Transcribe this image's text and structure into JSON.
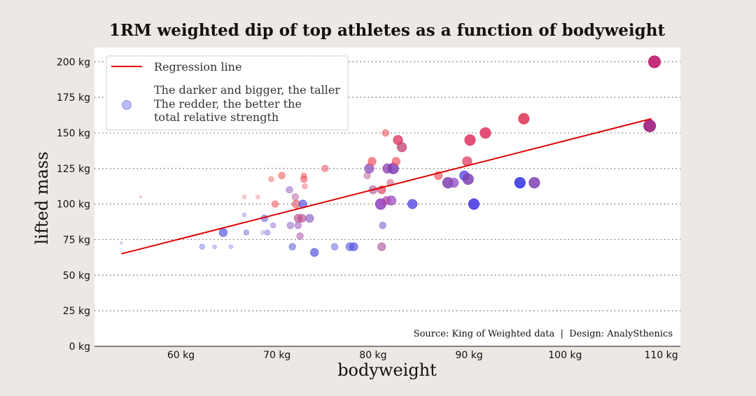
{
  "chart_data": {
    "type": "scatter",
    "title": "1RM weighted dip of top athletes as a function of bodyweight",
    "xlabel": "bodyweight",
    "ylabel": "lifted mass",
    "xlim": [
      51,
      112
    ],
    "ylim": [
      0,
      210
    ],
    "x_ticks": [
      60,
      70,
      80,
      90,
      100,
      110
    ],
    "x_tick_labels": [
      "60 kg",
      "70 kg",
      "80 kg",
      "90 kg",
      "100 kg",
      "110 kg"
    ],
    "y_ticks": [
      0,
      25,
      50,
      75,
      100,
      125,
      150,
      175,
      200
    ],
    "y_tick_labels": [
      "0 kg",
      "25 kg",
      "50 kg",
      "75 kg",
      "100 kg",
      "125 kg",
      "150 kg",
      "175 kg",
      "200 kg"
    ],
    "grid": "horizontal dotted",
    "legend": {
      "placement": "top-left",
      "line_label": "Regression line",
      "marker_label_lines": [
        "The darker and bigger, the taller",
        "The redder, the better the",
        "total relative strength"
      ]
    },
    "source_text": "Source: King of Weighted data  |  Design: AnalySthenics",
    "regression": {
      "x": [
        53.8,
        109
      ],
      "y": [
        65,
        160
      ],
      "color": "#e00000"
    },
    "points": [
      {
        "x": 53.8,
        "y": 72.5,
        "size": 1,
        "color": "#a080d0"
      },
      {
        "x": 55.8,
        "y": 105,
        "size": 0.5,
        "color": "#d06080"
      },
      {
        "x": 62.2,
        "y": 70,
        "size": 3,
        "color": "#8080f0"
      },
      {
        "x": 63.5,
        "y": 70,
        "size": 2,
        "color": "#8080f0"
      },
      {
        "x": 64.4,
        "y": 80,
        "size": 5,
        "color": "#5050e0"
      },
      {
        "x": 65.2,
        "y": 70,
        "size": 2,
        "color": "#8080f0"
      },
      {
        "x": 66.6,
        "y": 92.5,
        "size": 2,
        "color": "#a080e0"
      },
      {
        "x": 66.6,
        "y": 105,
        "size": 2,
        "color": "#f08090"
      },
      {
        "x": 66.8,
        "y": 80,
        "size": 3,
        "color": "#7070e0"
      },
      {
        "x": 68.0,
        "y": 105,
        "size": 2,
        "color": "#f08090"
      },
      {
        "x": 68.5,
        "y": 80,
        "size": 2,
        "color": "#b090d0"
      },
      {
        "x": 68.7,
        "y": 90,
        "size": 4,
        "color": "#7060d8"
      },
      {
        "x": 69.0,
        "y": 80,
        "size": 3,
        "color": "#8070e0"
      },
      {
        "x": 69.4,
        "y": 117.5,
        "size": 3,
        "color": "#f07070"
      },
      {
        "x": 69.6,
        "y": 85,
        "size": 3,
        "color": "#a070d0"
      },
      {
        "x": 69.8,
        "y": 100,
        "size": 4,
        "color": "#f06060"
      },
      {
        "x": 70.5,
        "y": 120,
        "size": 4,
        "color": "#f06060"
      },
      {
        "x": 71.3,
        "y": 110,
        "size": 4,
        "color": "#a070c8"
      },
      {
        "x": 71.4,
        "y": 85,
        "size": 4,
        "color": "#9070c8"
      },
      {
        "x": 71.6,
        "y": 70,
        "size": 4,
        "color": "#6060e0"
      },
      {
        "x": 71.9,
        "y": 105,
        "size": 4,
        "color": "#c070a8"
      },
      {
        "x": 72.0,
        "y": 100,
        "size": 5,
        "color": "#e06070"
      },
      {
        "x": 72.2,
        "y": 90,
        "size": 5,
        "color": "#c05090"
      },
      {
        "x": 72.2,
        "y": 85,
        "size": 4,
        "color": "#a060c8"
      },
      {
        "x": 72.4,
        "y": 77.5,
        "size": 4,
        "color": "#b060b0"
      },
      {
        "x": 72.6,
        "y": 90,
        "size": 5,
        "color": "#c05090"
      },
      {
        "x": 72.7,
        "y": 100,
        "size": 5,
        "color": "#5050e0"
      },
      {
        "x": 72.8,
        "y": 117.5,
        "size": 4,
        "color": "#f05060"
      },
      {
        "x": 72.8,
        "y": 120,
        "size": 3,
        "color": "#f05060"
      },
      {
        "x": 72.9,
        "y": 112.5,
        "size": 3,
        "color": "#f07080"
      },
      {
        "x": 73.4,
        "y": 90,
        "size": 5,
        "color": "#9060c8"
      },
      {
        "x": 73.9,
        "y": 66,
        "size": 5,
        "color": "#5050e0"
      },
      {
        "x": 75.0,
        "y": 125,
        "size": 4,
        "color": "#f06070"
      },
      {
        "x": 76.0,
        "y": 70,
        "size": 4,
        "color": "#7070e0"
      },
      {
        "x": 77.6,
        "y": 70,
        "size": 5,
        "color": "#6060e0"
      },
      {
        "x": 78.0,
        "y": 70,
        "size": 5,
        "color": "#5050e0"
      },
      {
        "x": 79.4,
        "y": 120,
        "size": 4,
        "color": "#c070a0"
      },
      {
        "x": 79.6,
        "y": 125,
        "size": 6,
        "color": "#9050b8"
      },
      {
        "x": 79.9,
        "y": 130,
        "size": 5,
        "color": "#f05060"
      },
      {
        "x": 80.0,
        "y": 110,
        "size": 5,
        "color": "#b060a0"
      },
      {
        "x": 80.8,
        "y": 100,
        "size": 7,
        "color": "#9040c0"
      },
      {
        "x": 80.9,
        "y": 70,
        "size": 5,
        "color": "#b060a0"
      },
      {
        "x": 80.9,
        "y": 110,
        "size": 5,
        "color": "#e04060"
      },
      {
        "x": 81.0,
        "y": 85,
        "size": 4,
        "color": "#8060d0"
      },
      {
        "x": 81.3,
        "y": 150,
        "size": 4,
        "color": "#f05060"
      },
      {
        "x": 81.4,
        "y": 102.5,
        "size": 5,
        "color": "#b040a0"
      },
      {
        "x": 81.5,
        "y": 125,
        "size": 6,
        "color": "#9040b0"
      },
      {
        "x": 81.8,
        "y": 115,
        "size": 4,
        "color": "#d06080"
      },
      {
        "x": 81.9,
        "y": 102.5,
        "size": 6,
        "color": "#a050c0"
      },
      {
        "x": 82.1,
        "y": 125,
        "size": 7,
        "color": "#8040b8"
      },
      {
        "x": 82.4,
        "y": 130,
        "size": 5,
        "color": "#f05060"
      },
      {
        "x": 82.6,
        "y": 145,
        "size": 6,
        "color": "#e03060"
      },
      {
        "x": 83.0,
        "y": 140,
        "size": 6,
        "color": "#c04070"
      },
      {
        "x": 84.1,
        "y": 100,
        "size": 6,
        "color": "#5040e0"
      },
      {
        "x": 86.8,
        "y": 120,
        "size": 5,
        "color": "#f05060"
      },
      {
        "x": 87.8,
        "y": 115,
        "size": 7,
        "color": "#8040b0"
      },
      {
        "x": 88.4,
        "y": 115,
        "size": 6,
        "color": "#9050c0"
      },
      {
        "x": 89.5,
        "y": 120,
        "size": 6,
        "color": "#5040e0"
      },
      {
        "x": 89.8,
        "y": 130,
        "size": 6,
        "color": "#e04060"
      },
      {
        "x": 89.9,
        "y": 117.5,
        "size": 7,
        "color": "#8040b0"
      },
      {
        "x": 90.1,
        "y": 145,
        "size": 7,
        "color": "#e03060"
      },
      {
        "x": 90.5,
        "y": 100,
        "size": 7,
        "color": "#4030e0"
      },
      {
        "x": 91.7,
        "y": 150,
        "size": 7,
        "color": "#e03060"
      },
      {
        "x": 95.3,
        "y": 115,
        "size": 7,
        "color": "#3030e0"
      },
      {
        "x": 95.7,
        "y": 160,
        "size": 7,
        "color": "#e03050"
      },
      {
        "x": 96.8,
        "y": 115,
        "size": 7,
        "color": "#8040b0"
      },
      {
        "x": 108.8,
        "y": 155,
        "size": 8,
        "color": "#a02080"
      },
      {
        "x": 109.3,
        "y": 200,
        "size": 8,
        "color": "#c02070"
      }
    ]
  }
}
